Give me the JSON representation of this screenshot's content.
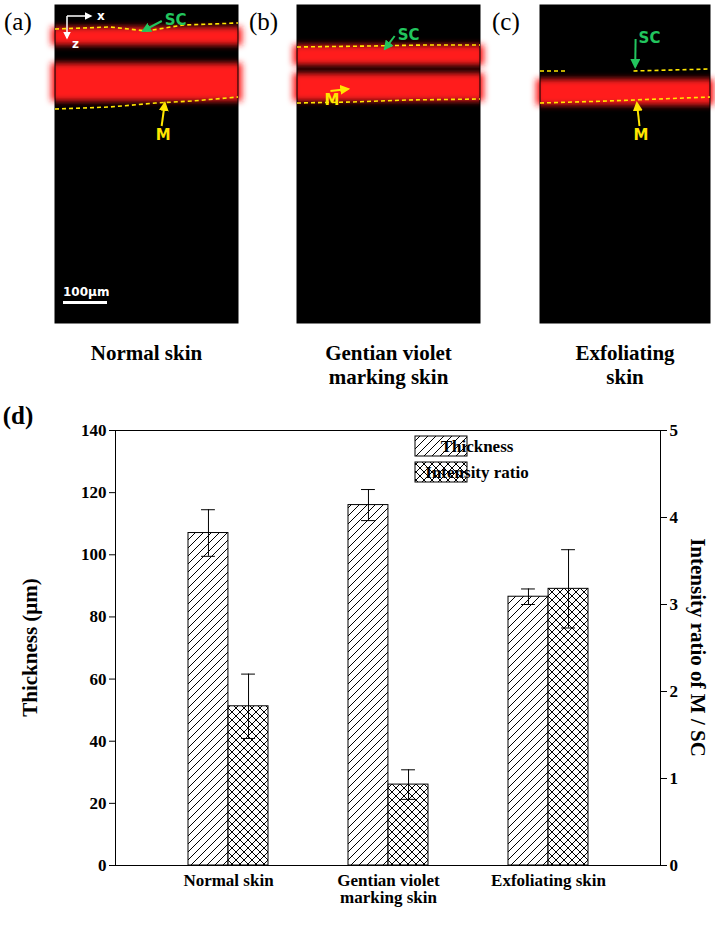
{
  "images": [
    {
      "letter": "(a)",
      "caption": "Normal skin",
      "labels": [
        "SC",
        "M"
      ],
      "axes": [
        "x",
        "z"
      ],
      "scale_bar": "100μm"
    },
    {
      "letter": "(b)",
      "caption": "Gentian violet marking skin",
      "labels": [
        "SC",
        "M"
      ]
    },
    {
      "letter": "(c)",
      "caption": "Exfoliating skin",
      "labels": [
        "SC",
        "M"
      ]
    }
  ],
  "chart_data": {
    "type": "bar",
    "panel_label": "(d)",
    "categories": [
      "Normal skin",
      "Gentian violet marking skin",
      "Exfoliating skin"
    ],
    "series": [
      {
        "name": "Thickness",
        "color": "#000000",
        "values": [
          107,
          116,
          86.5
        ],
        "errors": [
          7.5,
          5,
          2.5
        ]
      },
      {
        "name": "Intensity ratio",
        "color": "#000000",
        "axis": "y2",
        "values": [
          1.83,
          0.93,
          3.18
        ],
        "errors": [
          0.37,
          0.17,
          0.45
        ]
      }
    ],
    "ylabel": "Thickness (μm)",
    "y2label": "Intensity ratio of M / SC",
    "ylim": [
      0,
      140
    ],
    "yticks": [
      0,
      20,
      40,
      60,
      80,
      100,
      120,
      140
    ],
    "y2lim": [
      0,
      5
    ],
    "y2ticks": [
      0,
      1,
      2,
      3,
      4,
      5
    ],
    "legend": "top",
    "grid": false
  }
}
